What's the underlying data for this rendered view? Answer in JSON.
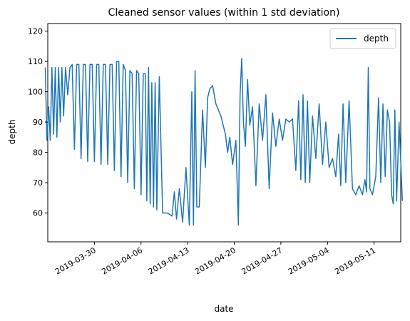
{
  "chart_data": {
    "type": "line",
    "title": "Cleaned sensor values (within 1 std deviation)",
    "xlabel": "date",
    "ylabel": "depth",
    "x_range": [
      "2019-03-23",
      "2019-05-15"
    ],
    "ylim": [
      50.5,
      122.5
    ],
    "x_ticks": [
      "2019-03-30",
      "2019-04-06",
      "2019-04-13",
      "2019-04-20",
      "2019-04-27",
      "2019-05-04",
      "2019-05-11"
    ],
    "y_ticks": [
      60,
      70,
      80,
      90,
      100,
      110,
      120
    ],
    "grid": false,
    "legend": {
      "position": "top-right",
      "entries": [
        "depth"
      ]
    },
    "series": [
      {
        "name": "depth",
        "color": "#1f77b4",
        "points": [
          [
            "2019-03-23",
            108
          ],
          [
            "2019-03-23",
            84
          ],
          [
            "2019-03-23",
            95
          ],
          [
            "2019-03-23",
            84
          ],
          [
            "2019-03-24",
            108
          ],
          [
            "2019-03-24",
            86
          ],
          [
            "2019-03-24",
            108
          ],
          [
            "2019-03-24",
            85
          ],
          [
            "2019-03-25",
            108
          ],
          [
            "2019-03-25",
            90
          ],
          [
            "2019-03-25",
            108
          ],
          [
            "2019-03-25",
            92
          ],
          [
            "2019-03-26",
            108
          ],
          [
            "2019-03-26",
            99
          ],
          [
            "2019-03-26",
            108
          ],
          [
            "2019-03-27",
            109
          ],
          [
            "2019-03-27",
            81
          ],
          [
            "2019-03-27",
            109
          ],
          [
            "2019-03-28",
            109
          ],
          [
            "2019-03-28",
            78
          ],
          [
            "2019-03-28",
            109
          ],
          [
            "2019-03-29",
            109
          ],
          [
            "2019-03-29",
            77
          ],
          [
            "2019-03-29",
            109
          ],
          [
            "2019-03-30",
            109
          ],
          [
            "2019-03-30",
            77
          ],
          [
            "2019-03-30",
            109
          ],
          [
            "2019-03-31",
            109
          ],
          [
            "2019-03-31",
            76
          ],
          [
            "2019-03-31",
            109
          ],
          [
            "2019-04-01",
            109
          ],
          [
            "2019-04-01",
            76
          ],
          [
            "2019-04-01",
            109
          ],
          [
            "2019-04-02",
            109
          ],
          [
            "2019-04-02",
            74
          ],
          [
            "2019-04-02",
            110
          ],
          [
            "2019-04-03",
            110
          ],
          [
            "2019-04-03",
            72
          ],
          [
            "2019-04-03",
            109
          ],
          [
            "2019-04-04",
            107
          ],
          [
            "2019-04-04",
            70
          ],
          [
            "2019-04-04",
            107
          ],
          [
            "2019-04-05",
            106
          ],
          [
            "2019-04-05",
            68
          ],
          [
            "2019-04-05",
            107
          ],
          [
            "2019-04-06",
            106
          ],
          [
            "2019-04-06",
            66
          ],
          [
            "2019-04-06",
            106
          ],
          [
            "2019-04-07",
            106
          ],
          [
            "2019-04-07",
            64
          ],
          [
            "2019-04-07",
            108
          ],
          [
            "2019-04-07",
            63
          ],
          [
            "2019-04-08",
            103
          ],
          [
            "2019-04-08",
            62
          ],
          [
            "2019-04-08",
            103
          ],
          [
            "2019-04-08",
            61
          ],
          [
            "2019-04-09",
            105
          ],
          [
            "2019-04-09",
            60
          ],
          [
            "2019-04-10",
            60
          ],
          [
            "2019-04-11",
            59
          ],
          [
            "2019-04-11",
            67
          ],
          [
            "2019-04-11",
            58
          ],
          [
            "2019-04-12",
            68
          ],
          [
            "2019-04-12",
            57
          ],
          [
            "2019-04-13",
            75
          ],
          [
            "2019-04-13",
            56
          ],
          [
            "2019-04-14",
            100
          ],
          [
            "2019-04-14",
            56
          ],
          [
            "2019-04-14",
            107
          ],
          [
            "2019-04-14",
            62
          ],
          [
            "2019-04-15",
            62
          ],
          [
            "2019-04-15",
            94
          ],
          [
            "2019-04-16",
            75
          ],
          [
            "2019-04-16",
            98
          ],
          [
            "2019-04-16",
            101
          ],
          [
            "2019-04-17",
            102
          ],
          [
            "2019-04-17",
            96
          ],
          [
            "2019-04-18",
            92
          ],
          [
            "2019-04-19",
            86
          ],
          [
            "2019-04-19",
            80
          ],
          [
            "2019-04-19",
            85
          ],
          [
            "2019-04-20",
            76
          ],
          [
            "2019-04-20",
            84
          ],
          [
            "2019-04-21",
            56
          ],
          [
            "2019-04-21",
            99
          ],
          [
            "2019-04-21",
            111
          ],
          [
            "2019-04-21",
            90
          ],
          [
            "2019-04-22",
            82
          ],
          [
            "2019-04-22",
            104
          ],
          [
            "2019-04-22",
            89
          ],
          [
            "2019-04-23",
            95
          ],
          [
            "2019-04-23",
            69
          ],
          [
            "2019-04-24",
            96
          ],
          [
            "2019-04-24",
            84
          ],
          [
            "2019-04-25",
            99
          ],
          [
            "2019-04-25",
            68
          ],
          [
            "2019-04-26",
            93
          ],
          [
            "2019-04-26",
            82
          ],
          [
            "2019-04-27",
            91
          ],
          [
            "2019-04-27",
            84
          ],
          [
            "2019-04-28",
            91
          ],
          [
            "2019-04-28",
            90
          ],
          [
            "2019-04-29",
            91
          ],
          [
            "2019-04-29",
            74
          ],
          [
            "2019-04-30",
            97
          ],
          [
            "2019-04-30",
            71
          ],
          [
            "2019-04-30",
            99
          ],
          [
            "2019-05-01",
            70
          ],
          [
            "2019-05-01",
            97
          ],
          [
            "2019-05-01",
            70
          ],
          [
            "2019-05-02",
            92
          ],
          [
            "2019-05-02",
            78
          ],
          [
            "2019-05-03",
            96
          ],
          [
            "2019-05-03",
            76
          ],
          [
            "2019-05-04",
            90
          ],
          [
            "2019-05-04",
            75
          ],
          [
            "2019-05-05",
            78
          ],
          [
            "2019-05-05",
            72
          ],
          [
            "2019-05-06",
            86
          ],
          [
            "2019-05-06",
            69
          ],
          [
            "2019-05-06",
            96
          ],
          [
            "2019-05-07",
            70
          ],
          [
            "2019-05-07",
            97
          ],
          [
            "2019-05-08",
            68
          ],
          [
            "2019-05-08",
            66
          ],
          [
            "2019-05-09",
            69
          ],
          [
            "2019-05-09",
            66
          ],
          [
            "2019-05-10",
            71
          ],
          [
            "2019-05-10",
            67
          ],
          [
            "2019-05-10",
            108
          ],
          [
            "2019-05-10",
            68
          ],
          [
            "2019-05-11",
            66
          ],
          [
            "2019-05-11",
            72
          ],
          [
            "2019-05-12",
            98
          ],
          [
            "2019-05-12",
            70
          ],
          [
            "2019-05-12",
            96
          ],
          [
            "2019-05-13",
            72
          ],
          [
            "2019-05-13",
            94
          ],
          [
            "2019-05-13",
            90
          ],
          [
            "2019-05-14",
            66
          ],
          [
            "2019-05-14",
            63
          ],
          [
            "2019-05-14",
            94
          ],
          [
            "2019-05-14",
            64
          ],
          [
            "2019-05-15",
            90
          ],
          [
            "2019-05-15",
            64
          ]
        ]
      }
    ]
  }
}
